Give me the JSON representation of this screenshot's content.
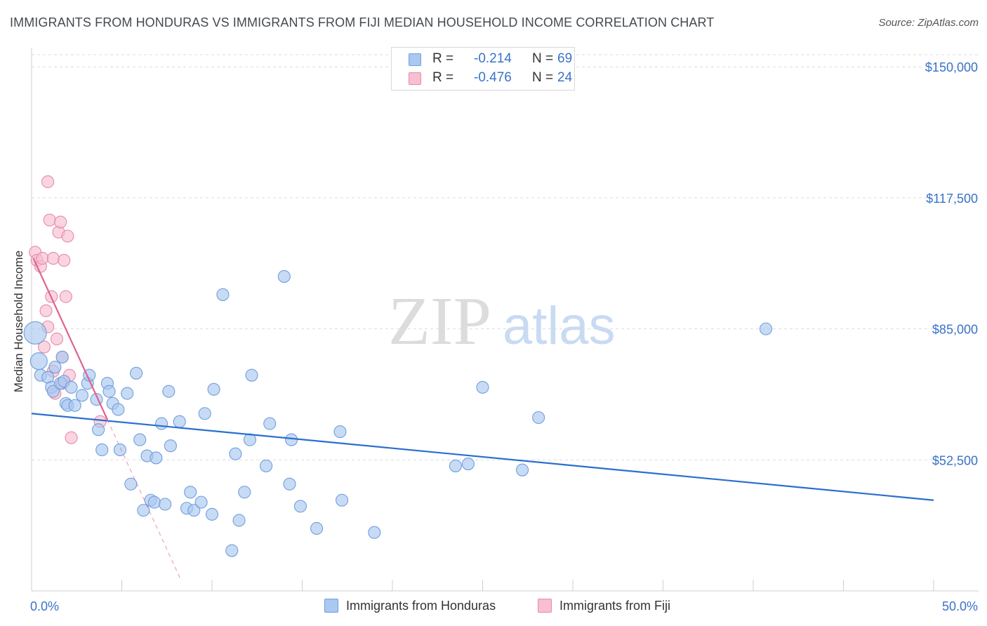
{
  "title": "IMMIGRANTS FROM HONDURAS VS IMMIGRANTS FROM FIJI MEDIAN HOUSEHOLD INCOME CORRELATION CHART",
  "source": "Source: ZipAtlas.com",
  "watermark": {
    "zip": "ZIP",
    "atlas": "atlas"
  },
  "stats": {
    "r_label": "R =",
    "n_label": "N =",
    "honduras": {
      "r": "-0.214",
      "n": "69"
    },
    "fiji": {
      "r": "-0.476",
      "n": "24"
    }
  },
  "legend": {
    "honduras": "Immigrants from Honduras",
    "fiji": "Immigrants from Fiji"
  },
  "colors": {
    "honduras_fill": "#aac8f0",
    "honduras_stroke": "#6f9fdc",
    "honduras_line": "#2a6fce",
    "fiji_fill": "#f7bfd1",
    "fiji_stroke": "#e58aa8",
    "fiji_line": "#e0628d",
    "axis_label": "#3a72c8",
    "grid": "#dcdcdc"
  },
  "chart_data": {
    "type": "scatter",
    "title": "IMMIGRANTS FROM HONDURAS VS IMMIGRANTS FROM FIJI MEDIAN HOUSEHOLD INCOME CORRELATION CHART",
    "xlabel": "",
    "ylabel": "Median Household Income",
    "xlim": [
      0,
      50
    ],
    "ylim": [
      20000,
      153000
    ],
    "x_tick_labels": [
      {
        "value": 0,
        "label": "0.0%"
      },
      {
        "value": 50,
        "label": "50.0%"
      }
    ],
    "y_ticks": [
      {
        "value": 52500,
        "label": "$52,500"
      },
      {
        "value": 85000,
        "label": "$85,000"
      },
      {
        "value": 117500,
        "label": "$117,500"
      },
      {
        "value": 150000,
        "label": "$150,000"
      }
    ],
    "series": [
      {
        "name": "Immigrants from Honduras",
        "trend": {
          "x": [
            0,
            50
          ],
          "y": [
            64000,
            42500
          ],
          "dashed_extension": null
        },
        "points": [
          [
            0.4,
            77000
          ],
          [
            0.5,
            73500
          ],
          [
            0.9,
            73000
          ],
          [
            1.1,
            70500
          ],
          [
            1.2,
            69500
          ],
          [
            1.6,
            71500
          ],
          [
            1.7,
            78000
          ],
          [
            1.8,
            72000
          ],
          [
            1.9,
            66500
          ],
          [
            2.0,
            66000
          ],
          [
            2.2,
            70500
          ],
          [
            2.4,
            66000
          ],
          [
            2.8,
            68500
          ],
          [
            3.1,
            71500
          ],
          [
            3.2,
            73500
          ],
          [
            3.6,
            67500
          ],
          [
            3.7,
            60000
          ],
          [
            3.9,
            55000
          ],
          [
            4.2,
            71500
          ],
          [
            4.3,
            69500
          ],
          [
            4.5,
            66500
          ],
          [
            4.8,
            65000
          ],
          [
            4.9,
            55000
          ],
          [
            5.3,
            69000
          ],
          [
            5.5,
            46500
          ],
          [
            5.8,
            74000
          ],
          [
            6.0,
            57500
          ],
          [
            6.2,
            40000
          ],
          [
            6.4,
            53500
          ],
          [
            6.6,
            42500
          ],
          [
            6.8,
            42000
          ],
          [
            6.9,
            53000
          ],
          [
            7.2,
            61500
          ],
          [
            7.4,
            41500
          ],
          [
            7.6,
            69500
          ],
          [
            7.7,
            56000
          ],
          [
            8.2,
            62000
          ],
          [
            8.6,
            40500
          ],
          [
            8.8,
            44500
          ],
          [
            9.0,
            40000
          ],
          [
            9.4,
            42000
          ],
          [
            9.6,
            64000
          ],
          [
            10.0,
            39000
          ],
          [
            10.1,
            70000
          ],
          [
            10.6,
            93500
          ],
          [
            11.1,
            30000
          ],
          [
            11.3,
            54000
          ],
          [
            11.5,
            37500
          ],
          [
            11.8,
            44500
          ],
          [
            12.1,
            57500
          ],
          [
            12.2,
            73500
          ],
          [
            13.0,
            51000
          ],
          [
            13.2,
            61500
          ],
          [
            14.0,
            98000
          ],
          [
            14.3,
            46500
          ],
          [
            14.4,
            57500
          ],
          [
            14.9,
            41000
          ],
          [
            15.8,
            35500
          ],
          [
            17.1,
            59500
          ],
          [
            17.2,
            42500
          ],
          [
            19.0,
            34500
          ],
          [
            23.5,
            51000
          ],
          [
            24.2,
            51500
          ],
          [
            25.0,
            70500
          ],
          [
            27.2,
            50000
          ],
          [
            28.1,
            63000
          ],
          [
            40.7,
            85000
          ],
          [
            0.2,
            84000
          ],
          [
            1.3,
            75500
          ]
        ]
      },
      {
        "name": "Immigrants from Fiji",
        "trend": {
          "x": [
            0.1,
            4.2
          ],
          "y": [
            102500,
            62500
          ],
          "dashed_extension": {
            "x": [
              4.2,
              8.3
            ],
            "y": [
              62500,
              22500
            ]
          }
        },
        "points": [
          [
            0.2,
            104000
          ],
          [
            0.3,
            102000
          ],
          [
            0.5,
            100500
          ],
          [
            0.6,
            102500
          ],
          [
            0.7,
            80500
          ],
          [
            0.8,
            89500
          ],
          [
            0.9,
            121500
          ],
          [
            0.9,
            85500
          ],
          [
            1.0,
            112000
          ],
          [
            1.1,
            93000
          ],
          [
            1.2,
            102500
          ],
          [
            1.2,
            74500
          ],
          [
            1.3,
            69000
          ],
          [
            1.4,
            82500
          ],
          [
            1.5,
            109000
          ],
          [
            1.6,
            111500
          ],
          [
            1.7,
            71500
          ],
          [
            1.7,
            78000
          ],
          [
            1.8,
            102000
          ],
          [
            1.9,
            93000
          ],
          [
            2.0,
            108000
          ],
          [
            2.1,
            73500
          ],
          [
            2.2,
            58000
          ],
          [
            3.8,
            62000
          ]
        ]
      }
    ]
  }
}
